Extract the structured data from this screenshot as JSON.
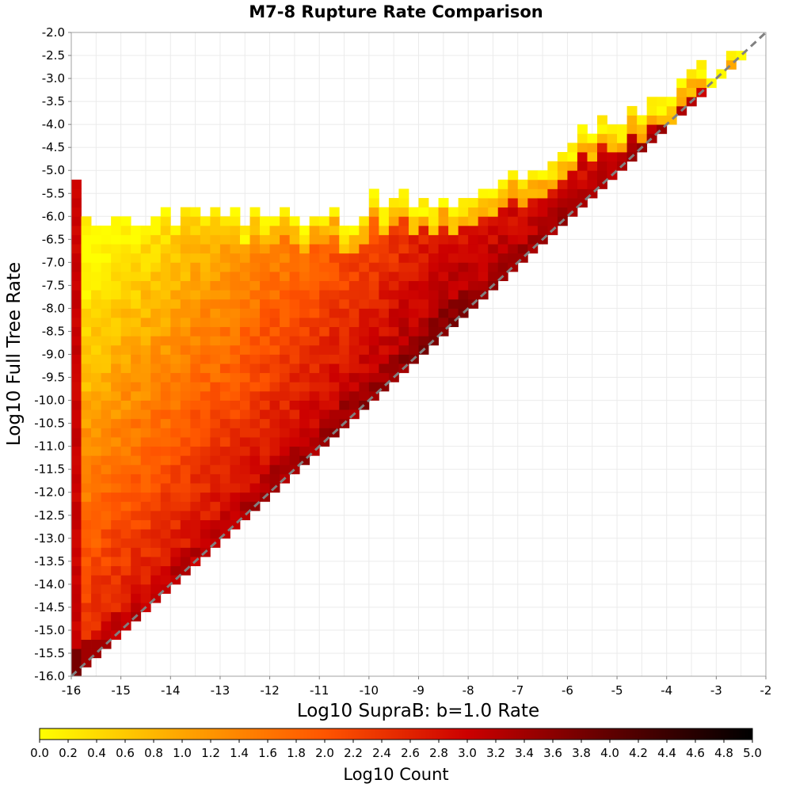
{
  "chart_data": {
    "type": "heatmap",
    "title": "M7-8 Rupture Rate Comparison",
    "xlabel": "Log10 SupraB: b=1.0 Rate",
    "ylabel": "Log10 Full Tree Rate",
    "xlim": [
      -16,
      -2
    ],
    "ylim": [
      -16,
      -2
    ],
    "x_ticks": [
      -16,
      -15,
      -14,
      -13,
      -12,
      -11,
      -10,
      -9,
      -8,
      -7,
      -6,
      -5,
      -4,
      -3,
      -2
    ],
    "x_tick_labels": [
      "-16",
      "-15",
      "-14",
      "-13",
      "-12",
      "-11",
      "-10",
      "-9",
      "-8",
      "-7",
      "-6",
      "-5",
      "-4",
      "-3",
      "-2"
    ],
    "y_ticks": [
      -2.0,
      -2.5,
      -3.0,
      -3.5,
      -4.0,
      -4.5,
      -5.0,
      -5.5,
      -6.0,
      -6.5,
      -7.0,
      -7.5,
      -8.0,
      -8.5,
      -9.0,
      -9.5,
      -10.0,
      -10.5,
      -11.0,
      -11.5,
      -12.0,
      -12.5,
      -13.0,
      -13.5,
      -14.0,
      -14.5,
      -15.0,
      -15.5,
      -16.0
    ],
    "y_tick_labels": [
      "-2.0",
      "-2.5",
      "-3.0",
      "-3.5",
      "-4.0",
      "-4.5",
      "-5.0",
      "-5.5",
      "-6.0",
      "-6.5",
      "-7.0",
      "-7.5",
      "-8.0",
      "-8.5",
      "-9.0",
      "-9.5",
      "-10.0",
      "-10.5",
      "-11.0",
      "-11.5",
      "-12.0",
      "-12.5",
      "-13.0",
      "-13.5",
      "-14.0",
      "-14.5",
      "-15.0",
      "-15.5",
      "-16.0"
    ],
    "bin_width": 0.2,
    "grid": true,
    "reference_line": {
      "from": [
        -16,
        -16
      ],
      "to": [
        -2,
        -2
      ],
      "style": "dashed",
      "color": "#808080"
    },
    "colorbar": {
      "title": "Log10 Count",
      "range": [
        0.0,
        5.0
      ],
      "ticks": [
        0.0,
        0.2,
        0.4,
        0.6,
        0.8,
        1.0,
        1.2,
        1.4,
        1.6,
        1.8,
        2.0,
        2.2,
        2.4,
        2.6,
        2.8,
        3.0,
        3.2,
        3.4,
        3.6,
        3.8,
        4.0,
        4.2,
        4.4,
        4.6,
        4.8,
        5.0
      ],
      "tick_labels": [
        "0.0",
        "0.2",
        "0.4",
        "0.6",
        "0.8",
        "1.0",
        "1.2",
        "1.4",
        "1.6",
        "1.8",
        "2.0",
        "2.2",
        "2.4",
        "2.6",
        "2.8",
        "3.0",
        "3.2",
        "3.4",
        "3.6",
        "3.8",
        "4.0",
        "4.2",
        "4.4",
        "4.6",
        "4.8",
        "5.0"
      ],
      "stops": [
        {
          "value": 0.0,
          "color": "#ffff00"
        },
        {
          "value": 1.0,
          "color": "#ffa500"
        },
        {
          "value": 2.0,
          "color": "#ff5500"
        },
        {
          "value": 3.0,
          "color": "#cc0000"
        },
        {
          "value": 4.0,
          "color": "#600000"
        },
        {
          "value": 5.0,
          "color": "#000000"
        }
      ]
    },
    "density_description_values": {
      "diagonal_peak_log10_count": 3.4,
      "diagonal_lower_end_log10_count": 4.6,
      "left_edge_column_log10_count": 3.0,
      "upper_fringe_log10_count": 0.0
    }
  }
}
